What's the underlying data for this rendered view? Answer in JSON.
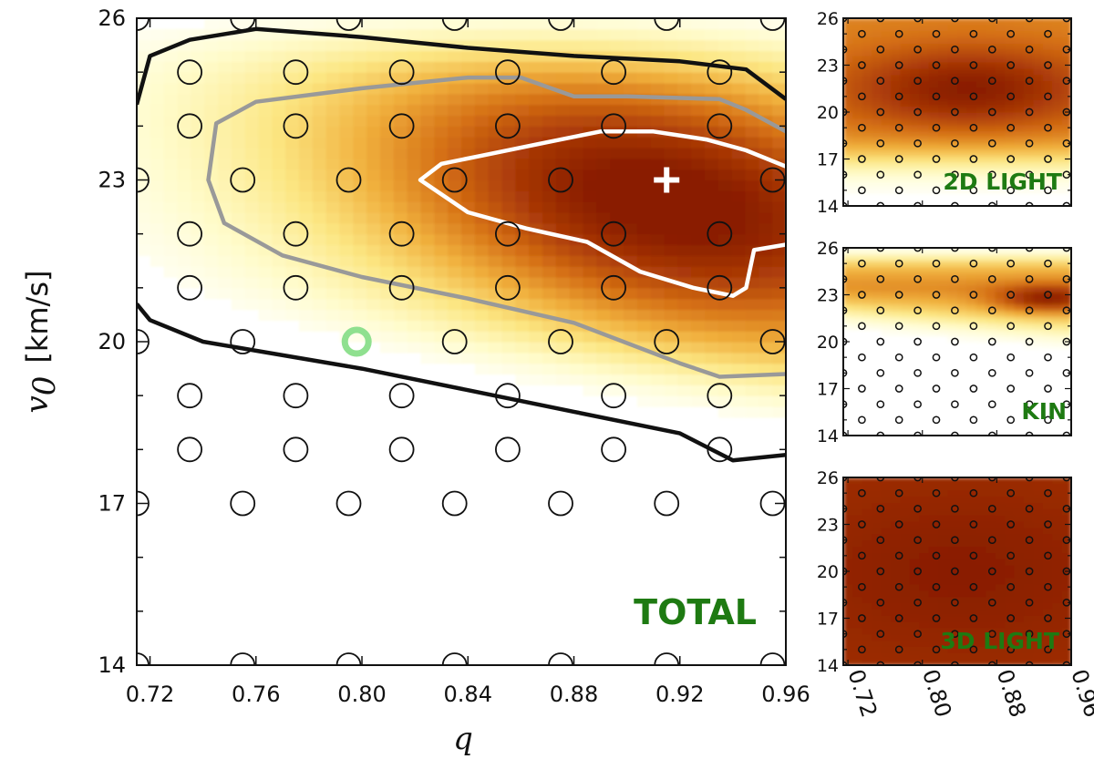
{
  "chart_data": [
    {
      "type": "heatmap",
      "panel": "total",
      "label": "TOTAL",
      "xlabel": "q",
      "ylabel_symbol": "v",
      "ylabel_sub": "0",
      "ylabel_units": "[km/s]",
      "xlim": [
        0.715,
        0.96
      ],
      "ylim": [
        14,
        26
      ],
      "xticks": [
        {
          "value": 0.72,
          "label": "0.72"
        },
        {
          "value": 0.76,
          "label": "0.76"
        },
        {
          "value": 0.8,
          "label": "0.80"
        },
        {
          "value": 0.84,
          "label": "0.84"
        },
        {
          "value": 0.88,
          "label": "0.88"
        },
        {
          "value": 0.92,
          "label": "0.92"
        },
        {
          "value": 0.96,
          "label": "0.96"
        }
      ],
      "yticks": [
        {
          "value": 14,
          "label": "14"
        },
        {
          "value": 17,
          "label": "17"
        },
        {
          "value": 20,
          "label": "20"
        },
        {
          "value": 23,
          "label": "23"
        },
        {
          "value": 26,
          "label": "26"
        }
      ],
      "peak": {
        "q": 0.915,
        "v0": 22.6
      },
      "best_fit": {
        "q": 0.915,
        "v0": 23
      },
      "reference_point": {
        "q": 0.798,
        "v0": 20
      },
      "grid_points": [
        {
          "q": 0.715,
          "v0": 26
        },
        {
          "q": 0.755,
          "v0": 26
        },
        {
          "q": 0.795,
          "v0": 26
        },
        {
          "q": 0.835,
          "v0": 26
        },
        {
          "q": 0.875,
          "v0": 26
        },
        {
          "q": 0.915,
          "v0": 26
        },
        {
          "q": 0.955,
          "v0": 26
        },
        {
          "q": 0.735,
          "v0": 25
        },
        {
          "q": 0.775,
          "v0": 25
        },
        {
          "q": 0.815,
          "v0": 25
        },
        {
          "q": 0.855,
          "v0": 25
        },
        {
          "q": 0.895,
          "v0": 25
        },
        {
          "q": 0.935,
          "v0": 25
        },
        {
          "q": 0.735,
          "v0": 24
        },
        {
          "q": 0.775,
          "v0": 24
        },
        {
          "q": 0.815,
          "v0": 24
        },
        {
          "q": 0.855,
          "v0": 24
        },
        {
          "q": 0.895,
          "v0": 24
        },
        {
          "q": 0.935,
          "v0": 24
        },
        {
          "q": 0.715,
          "v0": 23
        },
        {
          "q": 0.755,
          "v0": 23
        },
        {
          "q": 0.795,
          "v0": 23
        },
        {
          "q": 0.835,
          "v0": 23
        },
        {
          "q": 0.875,
          "v0": 23
        },
        {
          "q": 0.955,
          "v0": 23
        },
        {
          "q": 0.735,
          "v0": 22
        },
        {
          "q": 0.775,
          "v0": 22
        },
        {
          "q": 0.815,
          "v0": 22
        },
        {
          "q": 0.855,
          "v0": 22
        },
        {
          "q": 0.895,
          "v0": 22
        },
        {
          "q": 0.935,
          "v0": 22
        },
        {
          "q": 0.735,
          "v0": 21
        },
        {
          "q": 0.775,
          "v0": 21
        },
        {
          "q": 0.815,
          "v0": 21
        },
        {
          "q": 0.855,
          "v0": 21
        },
        {
          "q": 0.895,
          "v0": 21
        },
        {
          "q": 0.935,
          "v0": 21
        },
        {
          "q": 0.715,
          "v0": 20
        },
        {
          "q": 0.755,
          "v0": 20
        },
        {
          "q": 0.835,
          "v0": 20
        },
        {
          "q": 0.875,
          "v0": 20
        },
        {
          "q": 0.915,
          "v0": 20
        },
        {
          "q": 0.955,
          "v0": 20
        },
        {
          "q": 0.735,
          "v0": 19
        },
        {
          "q": 0.775,
          "v0": 19
        },
        {
          "q": 0.815,
          "v0": 19
        },
        {
          "q": 0.855,
          "v0": 19
        },
        {
          "q": 0.895,
          "v0": 19
        },
        {
          "q": 0.935,
          "v0": 19
        },
        {
          "q": 0.735,
          "v0": 18
        },
        {
          "q": 0.775,
          "v0": 18
        },
        {
          "q": 0.815,
          "v0": 18
        },
        {
          "q": 0.855,
          "v0": 18
        },
        {
          "q": 0.895,
          "v0": 18
        },
        {
          "q": 0.935,
          "v0": 18
        },
        {
          "q": 0.715,
          "v0": 17
        },
        {
          "q": 0.755,
          "v0": 17
        },
        {
          "q": 0.795,
          "v0": 17
        },
        {
          "q": 0.835,
          "v0": 17
        },
        {
          "q": 0.875,
          "v0": 17
        },
        {
          "q": 0.915,
          "v0": 17
        },
        {
          "q": 0.955,
          "v0": 17
        },
        {
          "q": 0.715,
          "v0": 14
        },
        {
          "q": 0.755,
          "v0": 14
        },
        {
          "q": 0.795,
          "v0": 14
        },
        {
          "q": 0.835,
          "v0": 14
        },
        {
          "q": 0.875,
          "v0": 14
        },
        {
          "q": 0.915,
          "v0": 14
        },
        {
          "q": 0.955,
          "v0": 14
        }
      ],
      "contours": [
        {
          "level": "outer",
          "color": "#111111",
          "closed": false,
          "points": [
            [
              0.715,
              24.4
            ],
            [
              0.72,
              25.3
            ],
            [
              0.735,
              25.6
            ],
            [
              0.76,
              25.8
            ],
            [
              0.8,
              25.65
            ],
            [
              0.84,
              25.45
            ],
            [
              0.88,
              25.3
            ],
            [
              0.92,
              25.2
            ],
            [
              0.945,
              25.05
            ],
            [
              0.96,
              24.5
            ]
          ]
        },
        {
          "level": "outer-lower",
          "color": "#111111",
          "closed": false,
          "points": [
            [
              0.715,
              20.7
            ],
            [
              0.72,
              20.4
            ],
            [
              0.74,
              20.0
            ],
            [
              0.8,
              19.5
            ],
            [
              0.84,
              19.1
            ],
            [
              0.88,
              18.7
            ],
            [
              0.92,
              18.3
            ],
            [
              0.94,
              17.8
            ],
            [
              0.96,
              17.9
            ]
          ]
        },
        {
          "level": "middle",
          "color": "#999999",
          "closed": false,
          "points": [
            [
              0.96,
              23.9
            ],
            [
              0.945,
              24.3
            ],
            [
              0.935,
              24.5
            ],
            [
              0.9,
              24.55
            ],
            [
              0.88,
              24.55
            ],
            [
              0.86,
              24.9
            ],
            [
              0.84,
              24.9
            ],
            [
              0.8,
              24.7
            ],
            [
              0.76,
              24.45
            ],
            [
              0.745,
              24.05
            ],
            [
              0.742,
              23.0
            ],
            [
              0.748,
              22.2
            ],
            [
              0.77,
              21.6
            ],
            [
              0.8,
              21.2
            ],
            [
              0.84,
              20.8
            ],
            [
              0.88,
              20.35
            ],
            [
              0.92,
              19.6
            ],
            [
              0.935,
              19.35
            ],
            [
              0.96,
              19.4
            ]
          ]
        },
        {
          "level": "inner",
          "color": "#ffffff",
          "closed": false,
          "points": [
            [
              0.96,
              23.25
            ],
            [
              0.945,
              23.55
            ],
            [
              0.93,
              23.75
            ],
            [
              0.91,
              23.9
            ],
            [
              0.89,
              23.9
            ],
            [
              0.87,
              23.7
            ],
            [
              0.845,
              23.45
            ],
            [
              0.83,
              23.3
            ],
            [
              0.822,
              23.0
            ],
            [
              0.84,
              22.4
            ],
            [
              0.862,
              22.1
            ],
            [
              0.885,
              21.85
            ],
            [
              0.905,
              21.3
            ],
            [
              0.925,
              21.0
            ],
            [
              0.94,
              20.85
            ],
            [
              0.945,
              21.0
            ],
            [
              0.948,
              21.7
            ],
            [
              0.96,
              21.8
            ]
          ]
        }
      ]
    },
    {
      "type": "heatmap",
      "panel": "2d-light",
      "label": "2D LIGHT",
      "xlim": [
        0.715,
        0.96
      ],
      "ylim": [
        14,
        26
      ],
      "yticks": [
        {
          "value": 14,
          "label": "14"
        },
        {
          "value": 17,
          "label": "17"
        },
        {
          "value": 20,
          "label": "20"
        },
        {
          "value": 23,
          "label": "23"
        },
        {
          "value": 26,
          "label": "26"
        }
      ],
      "peak": {
        "q": 0.85,
        "v0": 21.5
      },
      "high_above": 19.5,
      "low_below": 15.5
    },
    {
      "type": "heatmap",
      "panel": "kin",
      "label": "KIN",
      "xlim": [
        0.715,
        0.96
      ],
      "ylim": [
        14,
        26
      ],
      "yticks": [
        {
          "value": 14,
          "label": "14"
        },
        {
          "value": 17,
          "label": "17"
        },
        {
          "value": 20,
          "label": "20"
        },
        {
          "value": 23,
          "label": "23"
        },
        {
          "value": 26,
          "label": "26"
        }
      ],
      "peak": {
        "q": 0.935,
        "v0": 22.7
      },
      "high_above": 23.2,
      "low_below": 19.5
    },
    {
      "type": "heatmap",
      "panel": "3d-light",
      "label": "3D LIGHT",
      "xlim": [
        0.715,
        0.96
      ],
      "ylim": [
        14,
        26
      ],
      "yticks": [
        {
          "value": 14,
          "label": "14"
        },
        {
          "value": 17,
          "label": "17"
        },
        {
          "value": 20,
          "label": "20"
        },
        {
          "value": 23,
          "label": "23"
        },
        {
          "value": 26,
          "label": "26"
        }
      ],
      "xticks": [
        {
          "value": 0.72,
          "label": "0.72"
        },
        {
          "value": 0.8,
          "label": "0.80"
        },
        {
          "value": 0.88,
          "label": "0.88"
        },
        {
          "value": 0.96,
          "label": "0.96"
        }
      ],
      "peak": {
        "q": 0.84,
        "v0": 20
      },
      "high_above": 14,
      "low_below": 14
    }
  ],
  "colors": {
    "accent_label": "#1e7a12",
    "reference_point": "#8fe08f",
    "best_fit": "#ffffff"
  }
}
